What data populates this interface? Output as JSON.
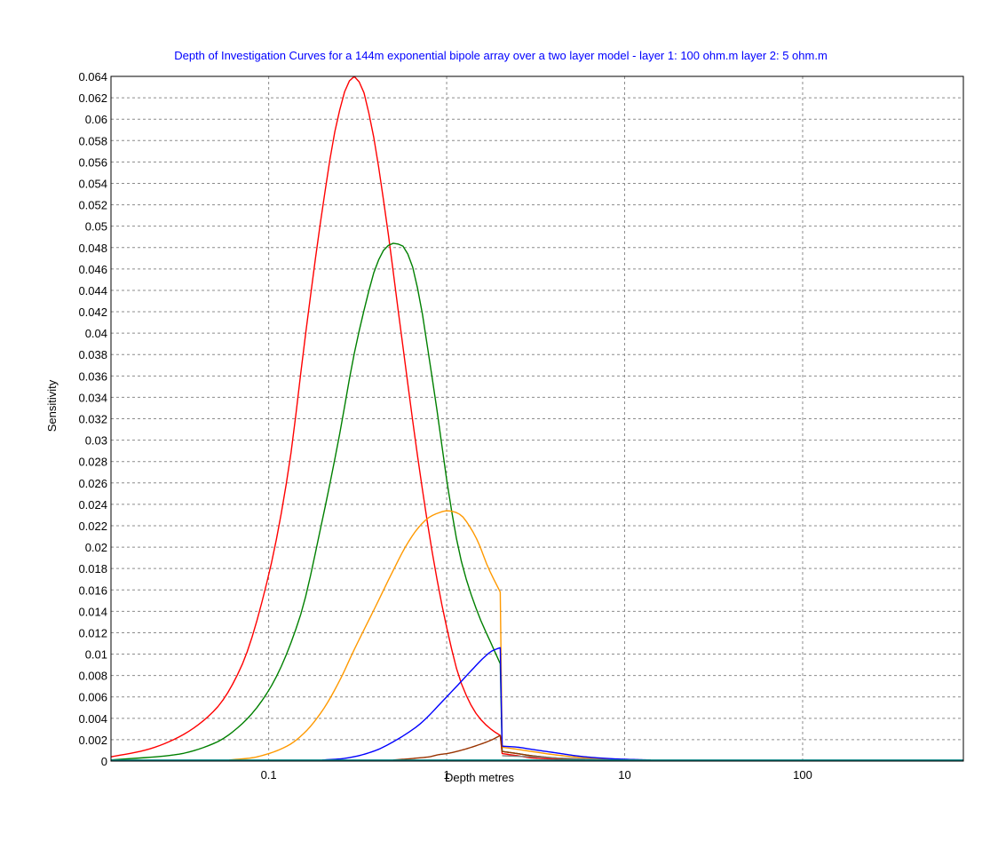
{
  "chart_data": {
    "type": "line",
    "title": "Depth of Investigation Curves for a 144m exponential bipole array over a two layer model - layer 1: 100 ohm.m  layer 2: 5 ohm.m",
    "xlabel": "Depth  metres",
    "ylabel": "Sensitivity",
    "x_scale": "log",
    "xlim": [
      0.013,
      800
    ],
    "ylim": [
      0,
      0.064
    ],
    "y_ticks": [
      "0",
      "0.002",
      "0.004",
      "0.006",
      "0.008",
      "0.01",
      "0.012",
      "0.014",
      "0.016",
      "0.018",
      "0.02",
      "0.022",
      "0.024",
      "0.026",
      "0.028",
      "0.03",
      "0.032",
      "0.034",
      "0.036",
      "0.038",
      "0.04",
      "0.042",
      "0.044",
      "0.046",
      "0.048",
      "0.05",
      "0.052",
      "0.054",
      "0.056",
      "0.058",
      "0.06",
      "0.062",
      "0.064"
    ],
    "x_ticks": [
      {
        "value": 0.1,
        "label": "0.1"
      },
      {
        "value": 1,
        "label": "1"
      },
      {
        "value": 10,
        "label": "10"
      },
      {
        "value": 100,
        "label": "100"
      }
    ],
    "grid": true,
    "legend": "none",
    "series": [
      {
        "color": "#ff0000",
        "x": [
          0.013,
          0.02,
          0.03,
          0.05,
          0.07,
          0.1,
          0.13,
          0.16,
          0.2,
          0.24,
          0.28,
          0.3,
          0.33,
          0.38,
          0.45,
          0.55,
          0.7,
          0.85,
          1.0,
          1.2,
          1.5,
          1.8,
          2.0,
          2.05,
          2.5,
          3.0,
          4.0,
          5.0
        ],
        "y": [
          0.0004,
          0.001,
          0.0021,
          0.0048,
          0.0088,
          0.0174,
          0.0275,
          0.0395,
          0.0515,
          0.0595,
          0.0634,
          0.064,
          0.0632,
          0.0592,
          0.0515,
          0.0405,
          0.0275,
          0.0185,
          0.0125,
          0.0074,
          0.0042,
          0.0029,
          0.0024,
          0.0007,
          0.0005,
          0.0003,
          0.0002,
          0.0001
        ]
      },
      {
        "color": "#008000",
        "x": [
          0.013,
          0.03,
          0.05,
          0.07,
          0.1,
          0.15,
          0.2,
          0.25,
          0.3,
          0.35,
          0.4,
          0.45,
          0.5,
          0.56,
          0.62,
          0.7,
          0.8,
          0.9,
          1.0,
          1.2,
          1.5,
          1.8,
          2.0,
          2.05,
          2.5,
          3.0,
          4.0,
          6.0
        ],
        "y": [
          0.0001,
          0.0006,
          0.0017,
          0.0034,
          0.0066,
          0.0135,
          0.0225,
          0.0305,
          0.0378,
          0.0427,
          0.0462,
          0.0479,
          0.0484,
          0.0482,
          0.047,
          0.0435,
          0.0375,
          0.0318,
          0.0263,
          0.0189,
          0.0138,
          0.0108,
          0.0091,
          0.0009,
          0.0007,
          0.0005,
          0.0003,
          0.0001
        ]
      },
      {
        "color": "#ff9900",
        "x": [
          0.06,
          0.08,
          0.1,
          0.13,
          0.16,
          0.2,
          0.25,
          0.3,
          0.4,
          0.5,
          0.6,
          0.7,
          0.8,
          0.9,
          1.0,
          1.1,
          1.2,
          1.35,
          1.5,
          1.7,
          2.0,
          2.05,
          2.5,
          3.0,
          4.0,
          6.0,
          9.0
        ],
        "y": [
          0.0001,
          0.0003,
          0.0007,
          0.0015,
          0.0027,
          0.0047,
          0.0075,
          0.0103,
          0.0145,
          0.0178,
          0.0203,
          0.0219,
          0.0228,
          0.0232,
          0.0234,
          0.0233,
          0.023,
          0.0219,
          0.0205,
          0.0182,
          0.0158,
          0.0013,
          0.0011,
          0.0009,
          0.0006,
          0.0003,
          0.0001
        ]
      },
      {
        "color": "#0000ff",
        "x": [
          0.2,
          0.25,
          0.3,
          0.4,
          0.5,
          0.6,
          0.7,
          0.8,
          0.9,
          1.0,
          1.2,
          1.4,
          1.6,
          1.8,
          2.0,
          2.05,
          2.5,
          3.0,
          4.0,
          6.0,
          9.0,
          14.0
        ],
        "y": [
          0.0001,
          0.0002,
          0.0004,
          0.001,
          0.0018,
          0.0026,
          0.0034,
          0.0043,
          0.0052,
          0.006,
          0.0074,
          0.0086,
          0.0096,
          0.0103,
          0.0106,
          0.0014,
          0.0013,
          0.0011,
          0.0008,
          0.0004,
          0.0002,
          0.0001
        ]
      },
      {
        "color": "#993300",
        "x": [
          0.5,
          0.6,
          0.7,
          0.8,
          0.9,
          1.0,
          1.2,
          1.5,
          1.8,
          2.0,
          2.05,
          2.5,
          3.0,
          4.0,
          6.0
        ],
        "y": [
          0.0001,
          0.0002,
          0.0003,
          0.0004,
          0.0006,
          0.0007,
          0.001,
          0.0015,
          0.002,
          0.0024,
          0.0009,
          0.0007,
          0.0005,
          0.0003,
          0.0001
        ]
      },
      {
        "color": "#808080",
        "x": [
          2.05,
          3.0,
          4.0,
          6.0,
          9.0,
          14.0
        ],
        "y": [
          0.0005,
          0.0004,
          0.0003,
          0.0002,
          0.0001,
          0.0001
        ]
      },
      {
        "color": "#008080",
        "x": [
          0.013,
          1,
          10,
          100,
          800
        ],
        "y": [
          0.0001,
          0.0001,
          0.0001,
          0.0001,
          0.0001
        ]
      }
    ]
  }
}
